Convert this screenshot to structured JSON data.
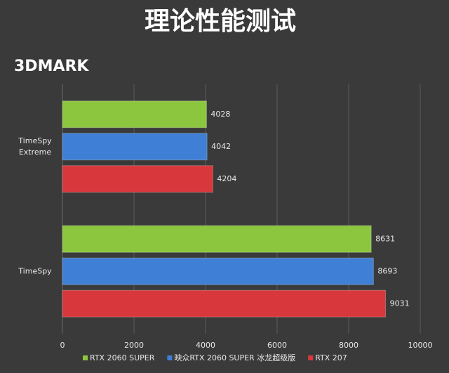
{
  "chart_data": {
    "type": "hbar",
    "title": "理论性能测试",
    "subtitle": "3DMARK",
    "categories": [
      "TimeSpy Extreme",
      "TimeSpy"
    ],
    "series": [
      {
        "name": "RTX 2060 SUPER",
        "color": "#8cc63f",
        "values": [
          4028,
          8631
        ]
      },
      {
        "name": "映众RTX 2060 SUPER 冰龙超级版",
        "color": "#3f7fd6",
        "values": [
          4042,
          8693
        ]
      },
      {
        "name": "RTX 207",
        "color": "#d8383c",
        "values": [
          4204,
          9031
        ]
      }
    ],
    "xlim": [
      0,
      10000
    ],
    "xticks": [
      0,
      2000,
      4000,
      6000,
      8000,
      10000
    ],
    "grid": true
  }
}
